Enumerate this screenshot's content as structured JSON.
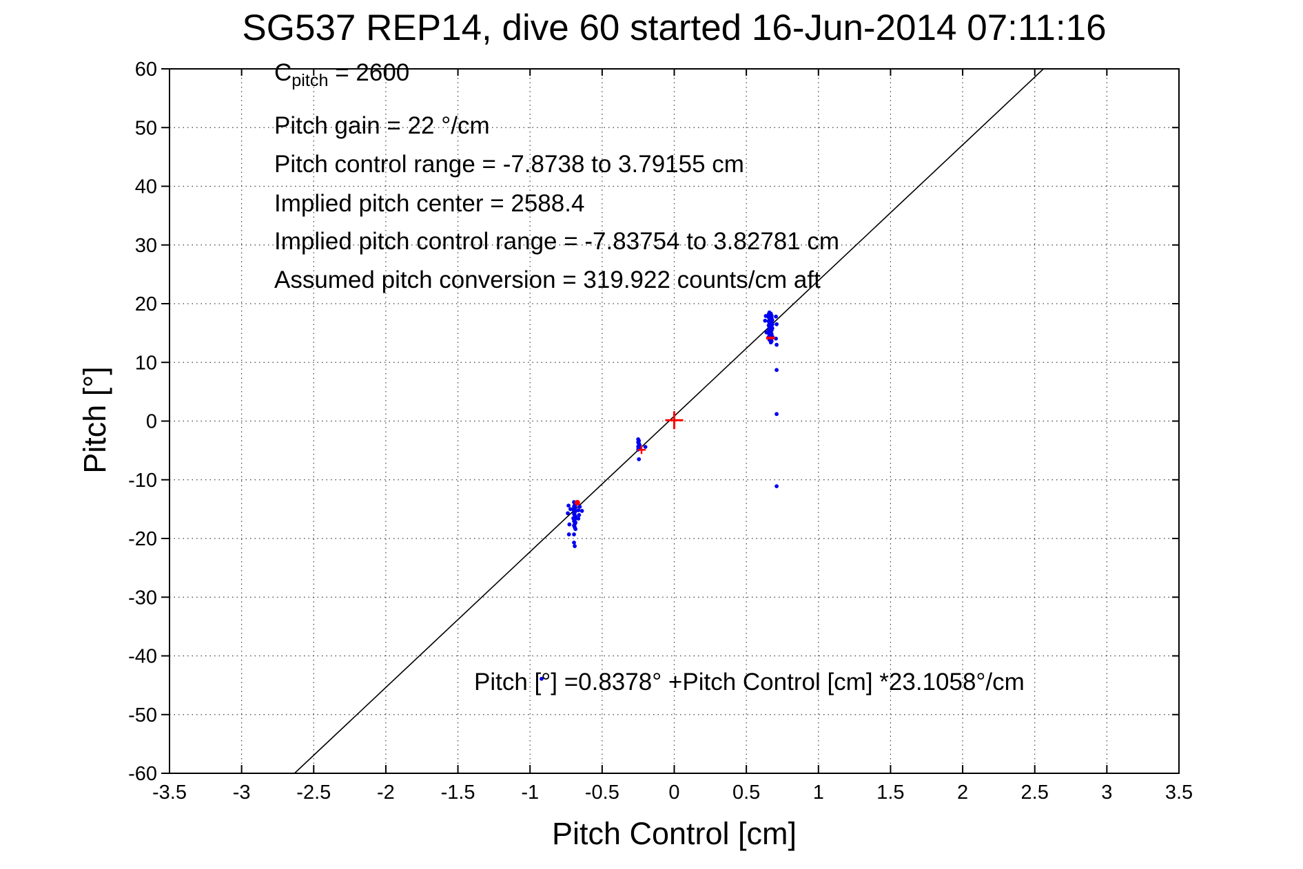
{
  "figure": {
    "title": "SG537 REP14, dive 60 started 16-Jun-2014 07:11:16",
    "annotation": {
      "c_pitch_base": "C",
      "c_pitch_sub": "pitch",
      "c_pitch_rest": " = 2600",
      "lines": [
        "Pitch gain = 22 °/cm",
        "Pitch control range = -7.8738 to 3.79155 cm",
        "Implied pitch center = 2588.4",
        "Implied pitch control range = -7.83754 to 3.82781 cm",
        "Assumed pitch conversion = 319.922 counts/cm aft"
      ]
    },
    "equation": "Pitch [°] =0.8378° +Pitch Control [cm] *23.1058°/cm"
  },
  "chart_data": {
    "type": "scatter",
    "title": "SG537 REP14, dive 60 started 16-Jun-2014 07:11:16",
    "xlabel": "Pitch Control [cm]",
    "ylabel": "Pitch [°]",
    "xlim": [
      -3.5,
      3.5
    ],
    "ylim": [
      -60,
      60
    ],
    "xticks": [
      -3.5,
      -3,
      -2.5,
      -2,
      -1.5,
      -1,
      -0.5,
      0,
      0.5,
      1,
      1.5,
      2,
      2.5,
      3,
      3.5
    ],
    "xtick_labels": [
      "-3.5",
      "-3",
      "-2.5",
      "-2",
      "-1.5",
      "-1",
      "-0.5",
      "0",
      "0.5",
      "1",
      "1.5",
      "2",
      "2.5",
      "3",
      "3.5"
    ],
    "yticks": [
      -60,
      -50,
      -40,
      -30,
      -20,
      -10,
      0,
      10,
      20,
      30,
      40,
      50,
      60
    ],
    "ytick_labels": [
      "-60",
      "-50",
      "-40",
      "-30",
      "-20",
      "-10",
      "0",
      "10",
      "20",
      "30",
      "40",
      "50",
      "60"
    ],
    "grid": "dotted",
    "legend": "none",
    "fit_line": {
      "label": "Pitch [°] = 0.8378 + 23.1058 * Pitch Control [cm]",
      "intercept": 0.8378,
      "slope": 23.1058,
      "color": "#000000"
    },
    "series": [
      {
        "name": "observed-pitch-vs-control",
        "marker": "dot",
        "color": "#0000ee",
        "points": [
          [
            -0.733,
            -14.4
          ],
          [
            -0.738,
            -15.7
          ],
          [
            -0.72,
            -15.0
          ],
          [
            -0.695,
            -13.8
          ],
          [
            -0.69,
            -14.05
          ],
          [
            -0.685,
            -14.3
          ],
          [
            -0.695,
            -14.55
          ],
          [
            -0.69,
            -14.8
          ],
          [
            -0.7,
            -15.05
          ],
          [
            -0.685,
            -15.3
          ],
          [
            -0.69,
            -15.55
          ],
          [
            -0.695,
            -15.8
          ],
          [
            -0.69,
            -16.05
          ],
          [
            -0.685,
            -16.3
          ],
          [
            -0.7,
            -16.55
          ],
          [
            -0.69,
            -16.8
          ],
          [
            -0.695,
            -17.05
          ],
          [
            -0.685,
            -17.3
          ],
          [
            -0.69,
            -17.55
          ],
          [
            -0.695,
            -17.8
          ],
          [
            -0.69,
            -18.1
          ],
          [
            -0.685,
            -18.4
          ],
          [
            -0.665,
            -15.2
          ],
          [
            -0.66,
            -16.0
          ],
          [
            -0.665,
            -16.6
          ],
          [
            -0.655,
            -14.6
          ],
          [
            -0.727,
            -17.6
          ],
          [
            -0.64,
            -15.3
          ],
          [
            -0.695,
            -19.3
          ],
          [
            -0.73,
            -19.3
          ],
          [
            -0.695,
            -20.7
          ],
          [
            -0.69,
            -21.3
          ],
          [
            -0.25,
            -3.1
          ],
          [
            -0.245,
            -3.35
          ],
          [
            -0.25,
            -3.6
          ],
          [
            -0.245,
            -3.85
          ],
          [
            -0.24,
            -4.1
          ],
          [
            -0.25,
            -4.35
          ],
          [
            -0.245,
            -4.6
          ],
          [
            -0.25,
            -4.85
          ],
          [
            -0.2,
            -4.4
          ],
          [
            -0.245,
            -6.5
          ],
          [
            0.655,
            18.2
          ],
          [
            0.66,
            18.5
          ],
          [
            0.67,
            18.3
          ],
          [
            0.675,
            17.95
          ],
          [
            0.655,
            17.7
          ],
          [
            0.66,
            17.45
          ],
          [
            0.675,
            17.55
          ],
          [
            0.68,
            17.2
          ],
          [
            0.655,
            17.0
          ],
          [
            0.66,
            16.75
          ],
          [
            0.675,
            16.85
          ],
          [
            0.68,
            16.5
          ],
          [
            0.655,
            16.3
          ],
          [
            0.66,
            16.05
          ],
          [
            0.675,
            16.15
          ],
          [
            0.68,
            15.8
          ],
          [
            0.655,
            15.6
          ],
          [
            0.67,
            15.35
          ],
          [
            0.675,
            15.45
          ],
          [
            0.655,
            15.0
          ],
          [
            0.66,
            14.75
          ],
          [
            0.675,
            14.85
          ],
          [
            0.68,
            14.4
          ],
          [
            0.655,
            14.3
          ],
          [
            0.675,
            14.1
          ],
          [
            0.66,
            13.85
          ],
          [
            0.675,
            13.6
          ],
          [
            0.67,
            13.4
          ],
          [
            0.635,
            17.9
          ],
          [
            0.63,
            17.1
          ],
          [
            0.64,
            15.1
          ],
          [
            0.705,
            17.8
          ],
          [
            0.71,
            16.5
          ],
          [
            0.705,
            14.05
          ],
          [
            0.71,
            13.0
          ],
          [
            0.71,
            8.7
          ],
          [
            0.71,
            1.2
          ],
          [
            0.71,
            -11.1
          ],
          [
            -0.92,
            -43.9
          ]
        ]
      }
    ],
    "reference_markers": {
      "name": "implied-pitch-center-markers",
      "color": "#ff0000",
      "items": [
        {
          "x": 0,
          "y": 0.15,
          "shape": "plus",
          "size": 26,
          "stroke": 3
        },
        {
          "x": -0.227,
          "y": -4.9,
          "shape": "plus",
          "size": 12,
          "stroke": 2.5
        },
        {
          "x": -0.672,
          "y": -13.9,
          "shape": "dot",
          "size": 8,
          "stroke": 0
        },
        {
          "x": 0.668,
          "y": 14.15,
          "shape": "dash",
          "size": 13,
          "stroke": 4
        }
      ]
    }
  }
}
